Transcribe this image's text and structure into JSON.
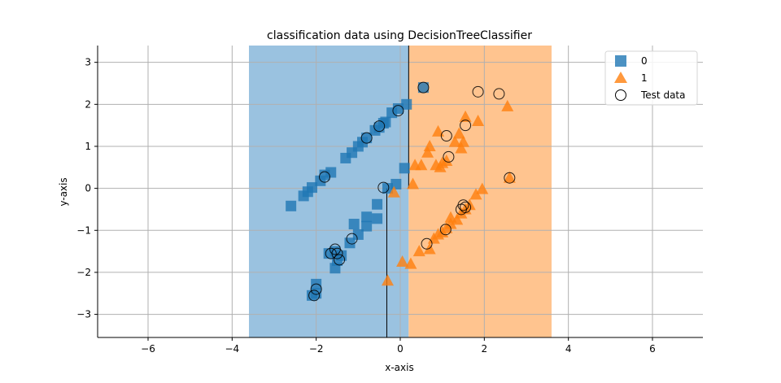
{
  "chart_data": {
    "type": "scatter",
    "title": "classification data using DecisionTreeClassifier",
    "xlabel": "x-axis",
    "ylabel": "y-axis",
    "xlim": [
      -7.2,
      7.2
    ],
    "ylim": [
      -3.55,
      3.4
    ],
    "xticks": [
      -6,
      -4,
      -2,
      0,
      2,
      4,
      6
    ],
    "yticks": [
      -3,
      -2,
      -1,
      0,
      1,
      2,
      3
    ],
    "xtick_labels": [
      "−6",
      "−4",
      "−2",
      "0",
      "2",
      "4",
      "6"
    ],
    "ytick_labels": [
      "−3",
      "−2",
      "−1",
      "0",
      "1",
      "2",
      "3"
    ],
    "grid": true,
    "legend_position": "top-right",
    "legend": [
      {
        "label": "0",
        "marker": "square",
        "color": "#1f77b4"
      },
      {
        "label": "1",
        "marker": "triangle",
        "color": "#ff7f0e"
      },
      {
        "label": "Test data",
        "marker": "circle-open",
        "color": "#000000"
      }
    ],
    "decision_regions": [
      {
        "class": "0",
        "x_range": [
          -3.6,
          0.2
        ],
        "y_range": [
          -3.55,
          3.4
        ],
        "color": "#9ac2e0"
      },
      {
        "class": "1",
        "x_range": [
          0.2,
          3.6
        ],
        "y_range": [
          -3.55,
          3.4
        ],
        "color": "#ffc48f"
      }
    ],
    "boundaries": [
      {
        "x": 0.2,
        "y_range": [
          0.0,
          3.4
        ]
      },
      {
        "x": -0.32,
        "y_range": [
          -3.55,
          0.0
        ]
      }
    ],
    "series": [
      {
        "name": "0",
        "marker": "square",
        "color": "#1f77b4",
        "points": [
          [
            -2.6,
            -0.42
          ],
          [
            -2.3,
            -0.18
          ],
          [
            -2.2,
            -0.08
          ],
          [
            -2.1,
            0.02
          ],
          [
            -1.9,
            0.18
          ],
          [
            -1.8,
            0.32
          ],
          [
            -1.65,
            0.38
          ],
          [
            -1.3,
            0.72
          ],
          [
            -1.15,
            0.85
          ],
          [
            -1.0,
            1.0
          ],
          [
            -0.9,
            1.1
          ],
          [
            -0.8,
            1.2
          ],
          [
            -0.6,
            1.38
          ],
          [
            -0.5,
            1.45
          ],
          [
            -0.35,
            1.58
          ],
          [
            -0.2,
            1.8
          ],
          [
            -0.05,
            1.9
          ],
          [
            0.15,
            2.0
          ],
          [
            0.55,
            2.4
          ],
          [
            -0.3,
            0.0
          ],
          [
            -0.1,
            0.1
          ],
          [
            0.1,
            0.48
          ],
          [
            -0.55,
            -0.38
          ],
          [
            -0.55,
            -0.72
          ],
          [
            -0.8,
            -0.68
          ],
          [
            -0.8,
            -0.9
          ],
          [
            -1.1,
            -0.85
          ],
          [
            -1.0,
            -1.1
          ],
          [
            -1.2,
            -1.3
          ],
          [
            -1.4,
            -1.6
          ],
          [
            -1.5,
            -1.72
          ],
          [
            -1.55,
            -1.9
          ],
          [
            -1.55,
            -1.5
          ],
          [
            -1.7,
            -1.55
          ],
          [
            -2.0,
            -2.28
          ],
          [
            -2.0,
            -2.5
          ],
          [
            -2.1,
            -2.55
          ],
          [
            -0.4,
            1.55
          ]
        ]
      },
      {
        "name": "1",
        "marker": "triangle",
        "color": "#ff7f0e",
        "points": [
          [
            -0.3,
            -2.2
          ],
          [
            0.05,
            -1.75
          ],
          [
            0.25,
            -1.8
          ],
          [
            0.45,
            -1.5
          ],
          [
            0.7,
            -1.45
          ],
          [
            0.8,
            -1.2
          ],
          [
            0.9,
            -1.1
          ],
          [
            1.0,
            -1.05
          ],
          [
            1.1,
            -0.95
          ],
          [
            1.2,
            -0.85
          ],
          [
            1.35,
            -0.75
          ],
          [
            1.45,
            -0.6
          ],
          [
            1.55,
            -0.5
          ],
          [
            1.65,
            -0.4
          ],
          [
            1.8,
            -0.15
          ],
          [
            1.95,
            -0.02
          ],
          [
            1.2,
            -0.7
          ],
          [
            -0.15,
            -0.1
          ],
          [
            0.3,
            0.1
          ],
          [
            0.35,
            0.55
          ],
          [
            0.5,
            0.55
          ],
          [
            0.85,
            0.55
          ],
          [
            1.0,
            0.6
          ],
          [
            1.1,
            0.65
          ],
          [
            0.65,
            0.85
          ],
          [
            0.7,
            1.0
          ],
          [
            0.9,
            1.35
          ],
          [
            1.3,
            1.1
          ],
          [
            1.4,
            1.3
          ],
          [
            1.5,
            1.1
          ],
          [
            1.55,
            1.7
          ],
          [
            1.85,
            1.6
          ],
          [
            2.55,
            1.95
          ],
          [
            0.95,
            0.5
          ],
          [
            2.6,
            0.25
          ],
          [
            1.45,
            0.95
          ]
        ]
      }
    ],
    "test_data": {
      "name": "Test data",
      "marker": "circle-open",
      "color": "#000000",
      "points": [
        [
          -2.05,
          -2.55
        ],
        [
          -2.0,
          -2.4
        ],
        [
          -1.55,
          -1.45
        ],
        [
          -1.65,
          -1.55
        ],
        [
          -1.5,
          -1.55
        ],
        [
          -1.45,
          -1.7
        ],
        [
          -1.15,
          -1.2
        ],
        [
          -1.8,
          0.27
        ],
        [
          -0.8,
          1.2
        ],
        [
          -0.5,
          1.48
        ],
        [
          -0.05,
          1.85
        ],
        [
          0.55,
          2.4
        ],
        [
          -0.4,
          0.02
        ],
        [
          1.85,
          2.3
        ],
        [
          2.35,
          2.25
        ],
        [
          1.55,
          1.5
        ],
        [
          1.1,
          1.25
        ],
        [
          1.15,
          0.75
        ],
        [
          2.6,
          0.25
        ],
        [
          1.5,
          -0.4
        ],
        [
          1.55,
          -0.45
        ],
        [
          1.45,
          -0.5
        ],
        [
          1.08,
          -0.98
        ],
        [
          0.63,
          -1.32
        ]
      ]
    }
  }
}
